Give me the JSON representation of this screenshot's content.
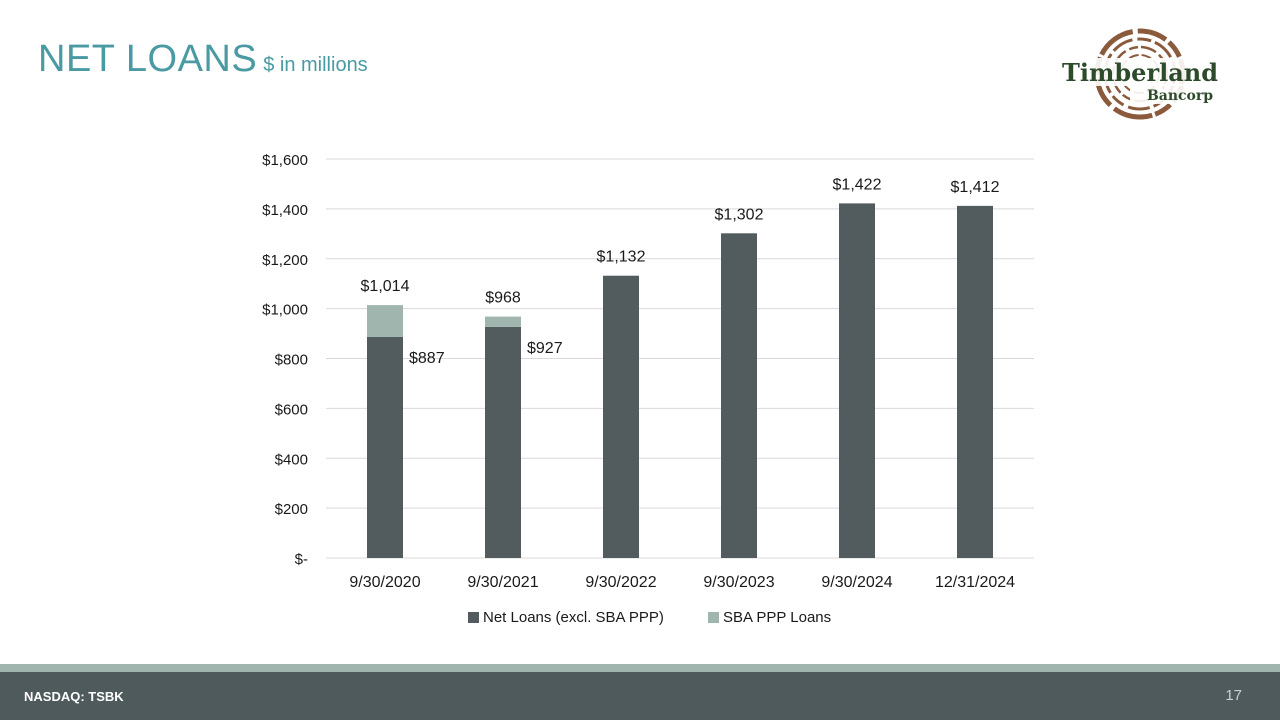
{
  "header": {
    "title": "NET LOANS",
    "subtitle": "$ in millions"
  },
  "logo": {
    "line1": "Timberland",
    "line2": "Bancorp"
  },
  "footer": {
    "ticker": "NASDAQ: TSBK",
    "page_number": "17"
  },
  "colors": {
    "accent": "#4a9aa3",
    "net_loans": "#525b5d",
    "sba_ppp": "#9fb5ae",
    "footer_bg": "#4f5a5c"
  },
  "chart_data": {
    "type": "bar",
    "stacked": true,
    "title": "",
    "xlabel": "",
    "ylabel": "",
    "categories": [
      "9/30/2020",
      "9/30/2021",
      "9/30/2022",
      "9/30/2023",
      "9/30/2024",
      "12/31/2024"
    ],
    "series": [
      {
        "name": "Net Loans (excl. SBA PPP)",
        "values": [
          887,
          927,
          1132,
          1302,
          1422,
          1412
        ]
      },
      {
        "name": "SBA PPP Loans",
        "values": [
          127,
          41,
          0,
          0,
          0,
          0
        ]
      }
    ],
    "total_labels": [
      "$1,014",
      "$968",
      "$1,132",
      "$1,302",
      "$1,422",
      "$1,412"
    ],
    "segment_labels": [
      "$887",
      "$927",
      "",
      "",
      "",
      ""
    ],
    "ylim": [
      0,
      1600
    ],
    "yticks": [
      0,
      200,
      400,
      600,
      800,
      1000,
      1200,
      1400,
      1600
    ],
    "ytick_labels": [
      "$-",
      "$200",
      "$400",
      "$600",
      "$800",
      "$1,000",
      "$1,200",
      "$1,400",
      "$1,600"
    ],
    "grid": true,
    "legend": "bottom"
  }
}
